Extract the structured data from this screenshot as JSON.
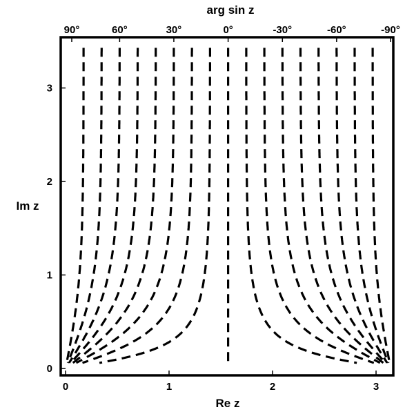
{
  "chart_data": {
    "type": "line",
    "title": "arg sin z",
    "xlabel": "Re z",
    "ylabel": "Im z",
    "xlim": [
      0,
      3.1416
    ],
    "ylim": [
      0,
      3.5
    ],
    "x_ticks": [
      {
        "value": 0,
        "label": "0"
      },
      {
        "value": 1,
        "label": "1"
      },
      {
        "value": 2,
        "label": "2"
      },
      {
        "value": 3,
        "label": "3"
      }
    ],
    "y_ticks": [
      {
        "value": 0,
        "label": "0"
      },
      {
        "value": 1,
        "label": "1"
      },
      {
        "value": 2,
        "label": "2"
      },
      {
        "value": 3,
        "label": "3"
      }
    ],
    "top_ticks": [
      {
        "value": 90,
        "label": "90°"
      },
      {
        "value": 60,
        "label": "60°"
      },
      {
        "value": 30,
        "label": "30°"
      },
      {
        "value": 0,
        "label": "0°"
      },
      {
        "value": -30,
        "label": "-30°"
      },
      {
        "value": -60,
        "label": "-60°"
      },
      {
        "value": -90,
        "label": "-90°"
      }
    ],
    "contour_levels_deg": [
      80,
      70,
      60,
      50,
      40,
      30,
      20,
      10,
      0,
      -10,
      -20,
      -30,
      -40,
      -50,
      -60,
      -70,
      -80
    ],
    "line_style": "dashed",
    "grid": false,
    "legend": "none"
  }
}
